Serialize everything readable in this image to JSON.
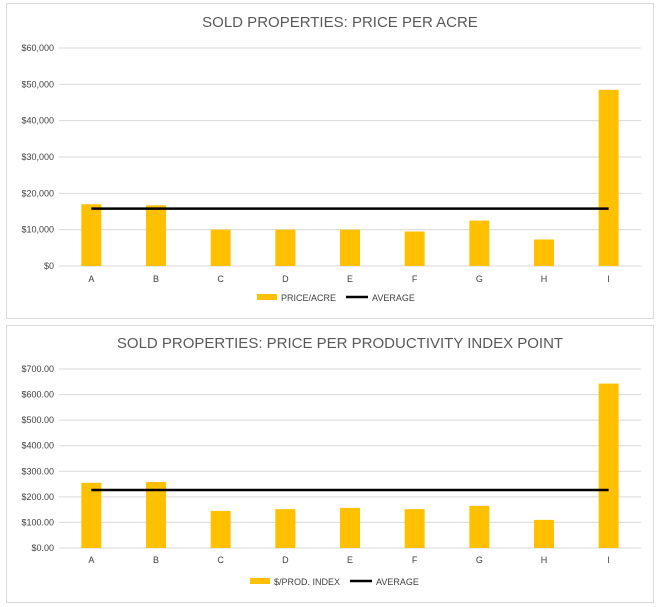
{
  "colors": {
    "bar": "#FFC000",
    "average_line": "#000000",
    "grid": "#d9d9d9",
    "text": "#404040",
    "title": "#595959"
  },
  "chart_data": [
    {
      "type": "bar",
      "title": "SOLD PROPERTIES: PRICE PER ACRE",
      "xlabel": "",
      "ylabel": "",
      "categories": [
        "A",
        "B",
        "C",
        "D",
        "E",
        "F",
        "G",
        "H",
        "I"
      ],
      "series": [
        {
          "name": "PRICE/ACRE",
          "type": "bar",
          "values": [
            17000,
            16700,
            10000,
            10000,
            10000,
            9500,
            12500,
            7300,
            48500
          ]
        },
        {
          "name": "AVERAGE",
          "type": "line",
          "values": [
            15800,
            15800,
            15800,
            15800,
            15800,
            15800,
            15800,
            15800,
            15800
          ]
        }
      ],
      "ylim": [
        0,
        60000
      ],
      "y_ticks": [
        0,
        10000,
        20000,
        30000,
        40000,
        50000,
        60000
      ],
      "y_tick_labels": [
        "$0",
        "$10,000",
        "$20,000",
        "$30,000",
        "$40,000",
        "$50,000",
        "$60,000"
      ],
      "grid": true,
      "legend": "bottom"
    },
    {
      "type": "bar",
      "title": "SOLD PROPERTIES: PRICE PER PRODUCTIVITY INDEX  POINT",
      "xlabel": "",
      "ylabel": "",
      "categories": [
        "A",
        "B",
        "C",
        "D",
        "E",
        "F",
        "G",
        "H",
        "I"
      ],
      "series": [
        {
          "name": "$/PROD. INDEX",
          "type": "bar",
          "values": [
            255,
            258,
            145,
            152,
            157,
            152,
            165,
            110,
            643
          ]
        },
        {
          "name": "AVERAGE",
          "type": "line",
          "values": [
            227,
            227,
            227,
            227,
            227,
            227,
            227,
            227,
            227
          ]
        }
      ],
      "ylim": [
        0,
        700
      ],
      "y_ticks": [
        0,
        100,
        200,
        300,
        400,
        500,
        600,
        700
      ],
      "y_tick_labels": [
        "$0.00",
        "$100.00",
        "$200.00",
        "$300.00",
        "$400.00",
        "$500.00",
        "$600.00",
        "$700.00"
      ],
      "grid": true,
      "legend": "bottom"
    }
  ]
}
